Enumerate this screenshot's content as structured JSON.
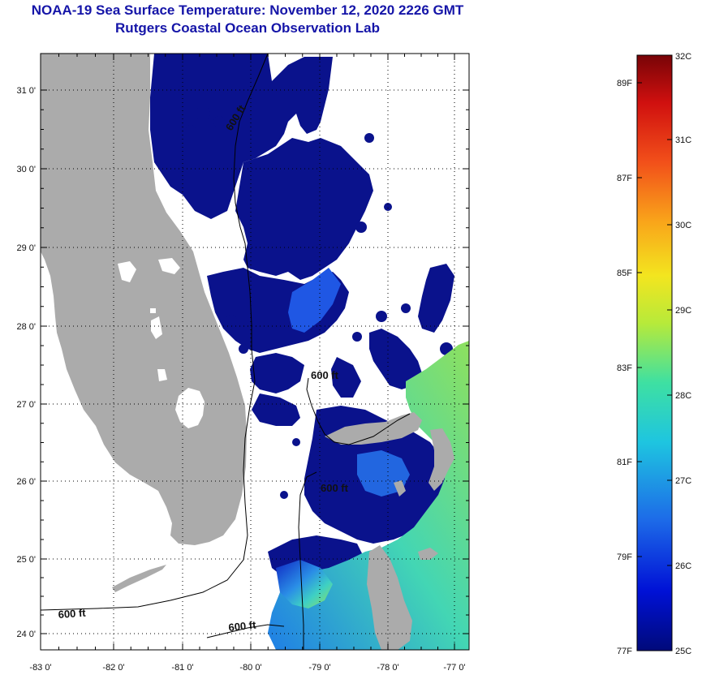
{
  "title": {
    "line1": "NOAA-19 Sea Surface Temperature:  November 12, 2020 2226 GMT",
    "line2": "Rutgers Coastal Ocean Observation Lab"
  },
  "axes": {
    "lat_labels": [
      "31 0'",
      "30 0'",
      "29 0'",
      "28 0'",
      "27 0'",
      "26 0'",
      "25 0'",
      "24 0'"
    ],
    "lon_labels": [
      "-83 0'",
      "-82 0'",
      "-81 0'",
      "-80 0'",
      "-79 0'",
      "-78 0'",
      "-77 0'"
    ]
  },
  "contour_label": "600 ft",
  "colorbar": {
    "top_label": "32C",
    "bottom_label": "25C",
    "bottom_f_label": "77F",
    "celsius": [
      "31C",
      "30C",
      "29C",
      "28C",
      "27C",
      "26C"
    ],
    "fahrenheit": [
      "89F",
      "87F",
      "85F",
      "83F",
      "81F",
      "79F"
    ]
  },
  "colors": {
    "title": "#1515a8",
    "land": "#ababab",
    "cold": "#0a128c",
    "warm": "#a8e24a"
  }
}
